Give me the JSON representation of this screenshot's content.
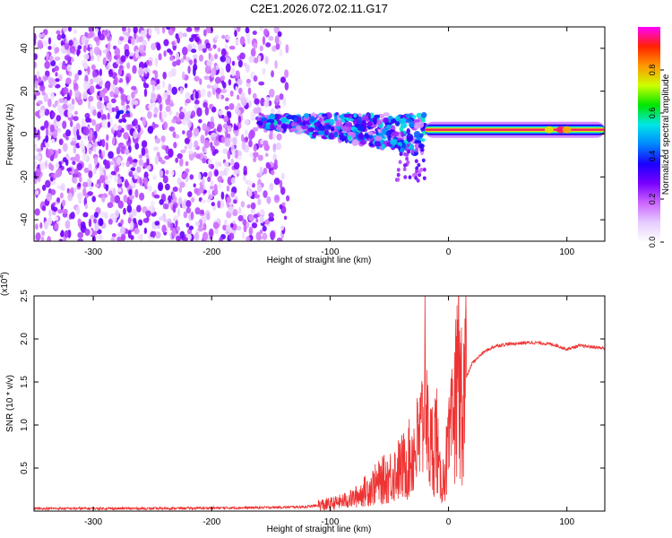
{
  "figure_title": "C2E1.2026.072.02.11.G17",
  "chart_data": [
    {
      "type": "heatmap",
      "panel": "spectrogram",
      "xlabel": "Height of straight line (km)",
      "ylabel": "Frequency (Hz)",
      "xlim": [
        -350,
        132
      ],
      "ylim": [
        -50,
        50
      ],
      "x_ticks": [
        -300,
        -200,
        -100,
        0,
        100
      ],
      "x_tick_labels": [
        "-300",
        "-200",
        "-100",
        "0",
        "100"
      ],
      "y_ticks": [
        -40,
        -20,
        0,
        20,
        40
      ],
      "y_tick_labels": [
        "-40",
        "-20",
        "0",
        "20",
        "40"
      ],
      "colorbar": {
        "label": "Normalized spectral amplitude",
        "range": [
          0,
          1
        ],
        "ticks": [
          0.0,
          0.2,
          0.4,
          0.6,
          0.8
        ],
        "tick_labels": [
          "0.0",
          "0.2",
          "0.4",
          "0.6",
          "0.8"
        ],
        "colors": [
          "#ffffff",
          "#e6ccff",
          "#cc66ff",
          "#7a00ff",
          "#1a00ff",
          "#0088ff",
          "#00e6e6",
          "#00e600",
          "#ccff00",
          "#ff9900",
          "#ff2200",
          "#ff00ff"
        ]
      },
      "features": [
        {
          "name": "diffuse noise",
          "x_range": [
            -350,
            -135
          ],
          "freq_range": [
            -50,
            50
          ],
          "amplitude": 0.1
        },
        {
          "name": "signal band",
          "x_range": [
            -160,
            -20
          ],
          "freq_center_start": 6,
          "freq_center_end": 0,
          "amplitude": 0.3
        },
        {
          "name": "carrier line",
          "x_range": [
            -20,
            132
          ],
          "freq_center": 2,
          "amplitude": 0.95
        }
      ]
    },
    {
      "type": "line",
      "panel": "snr",
      "xlabel": "Height of straight line (km)",
      "ylabel": "SNR (10 * v/v)",
      "scale_label": "(x10",
      "scale_exponent": "4",
      "xlim": [
        -350,
        132
      ],
      "ylim": [
        0,
        2.5
      ],
      "x_ticks": [
        -300,
        -200,
        -100,
        0,
        100
      ],
      "x_tick_labels": [
        "-300",
        "-200",
        "-100",
        "0",
        "100"
      ],
      "y_ticks": [
        0.5,
        1.0,
        1.5,
        2.0,
        2.5
      ],
      "y_tick_labels": [
        "0.5",
        "1.0",
        "1.5",
        "2.0",
        "2.5"
      ],
      "series": [
        {
          "name": "SNR",
          "color": "#ee3333",
          "x": [
            -350,
            -250,
            -160,
            -120,
            -100,
            -80,
            -65,
            -50,
            -35,
            -25,
            -20,
            -15,
            -10,
            -8,
            -5,
            0,
            5,
            10,
            15,
            20,
            30,
            40,
            50,
            60,
            70,
            80,
            90,
            100,
            110,
            120,
            132
          ],
          "y": [
            0.03,
            0.03,
            0.04,
            0.05,
            0.08,
            0.15,
            0.28,
            0.4,
            0.55,
            0.8,
            1.1,
            0.7,
            0.9,
            0.4,
            0.35,
            0.7,
            1.1,
            1.35,
            1.55,
            1.72,
            1.85,
            1.92,
            1.94,
            1.95,
            1.96,
            1.95,
            1.93,
            1.88,
            1.92,
            1.91,
            1.89
          ]
        }
      ]
    }
  ]
}
